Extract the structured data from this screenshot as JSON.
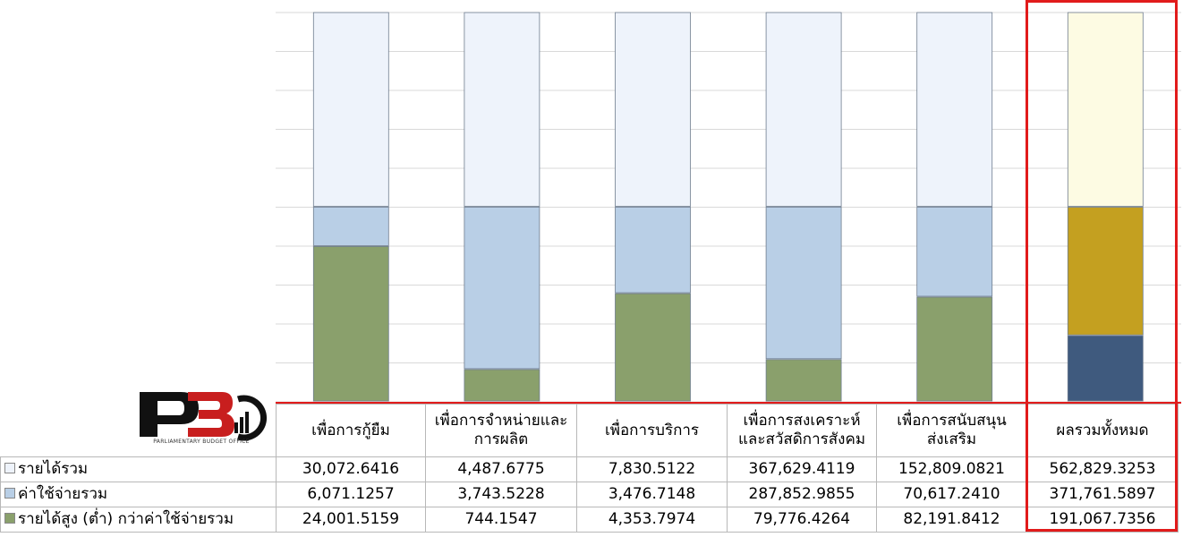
{
  "logo": {
    "caption": "PARLIAMENTARY BUDGET OFFICE"
  },
  "chart_data": {
    "type": "bar",
    "stacked": "100%",
    "categories": [
      "เพื่อการกู้ยืม",
      "เพื่อการจำหน่ายและการผลิต",
      "เพื่อการบริการ",
      "เพื่อการสงเคราะห์และสวัสดิการสังคม",
      "เพื่อการสนับสนุนส่งเสริม",
      "ผลรวมทั้งหมด"
    ],
    "category_lines": [
      [
        "เพื่อการกู้ยืม"
      ],
      [
        "เพื่อการจำหน่ายและ",
        "การผลิต"
      ],
      [
        "เพื่อการบริการ"
      ],
      [
        "เพื่อการสงเคราะห์",
        "และสวัสดิการสังคม"
      ],
      [
        "เพื่อการสนับสนุน",
        "ส่งเสริม"
      ],
      [
        "ผลรวมทั้งหมด"
      ]
    ],
    "series": [
      {
        "name": "รายได้รวม",
        "values": [
          30072.6416,
          4487.6775,
          7830.5122,
          367629.4119,
          152809.0821,
          562829.3253
        ]
      },
      {
        "name": "ค่าใช้จ่ายรวม",
        "values": [
          6071.1257,
          3743.5228,
          3476.7148,
          287852.9855,
          70617.241,
          371761.5897
        ]
      },
      {
        "name": "รายได้สูง (ต่ำ) กว่าค่าใช้จ่ายรวม",
        "values": [
          24001.5159,
          744.1547,
          4353.7974,
          79776.4264,
          82191.8412,
          191067.7356
        ]
      }
    ],
    "table_values": [
      [
        "30,072.6416",
        "4,487.6775",
        "7,830.5122",
        "367,629.4119",
        "152,809.0821",
        "562,829.3253"
      ],
      [
        "6,071.1257",
        "3,743.5228",
        "3,476.7148",
        "287,852.9855",
        "70,617.2410",
        "371,761.5897"
      ],
      [
        "24,001.5159",
        "744.1547",
        "4,353.7974",
        "79,776.4264",
        "82,191.8412",
        "191,067.7356"
      ]
    ],
    "colors": {
      "series": [
        "#eef3fb",
        "#b9cfe6",
        "#8aa06c"
      ],
      "total_bar": [
        "#fdfbe3",
        "#c4a020",
        "#3f5a7e"
      ],
      "highlight": "#e11b1b"
    },
    "grid": true,
    "legend": "table",
    "highlighted_category": "ผลรวมทั้งหมด"
  }
}
